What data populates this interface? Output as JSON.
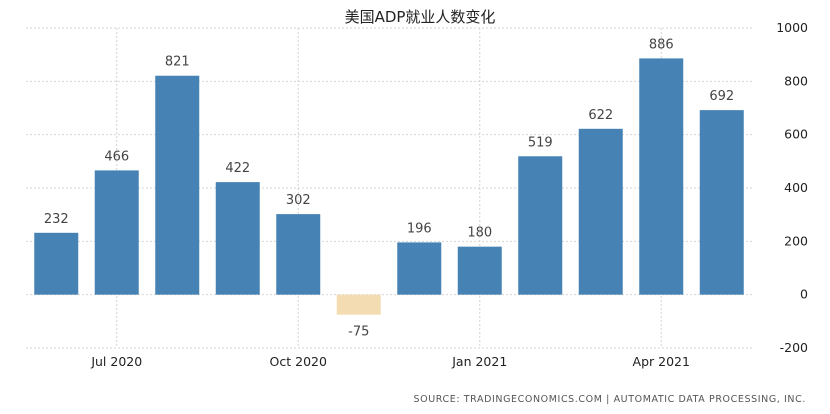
{
  "chart_data": {
    "type": "bar",
    "title": "美国ADP就业人数变化",
    "categories": [
      "2020-06",
      "2020-07",
      "2020-08",
      "2020-09",
      "2020-10",
      "2020-11",
      "2020-12",
      "2021-01",
      "2021-02",
      "2021-03",
      "2021-04",
      "2021-05"
    ],
    "values": [
      232,
      466,
      821,
      422,
      302,
      -75,
      196,
      180,
      519,
      622,
      886,
      692
    ],
    "value_labels": [
      "232",
      "466",
      "821",
      "422",
      "302",
      "-75",
      "196",
      "180",
      "519",
      "622",
      "886",
      "692"
    ],
    "x_tick_labels": [
      {
        "label": "Jul 2020",
        "at": "2020-07"
      },
      {
        "label": "Oct 2020",
        "at": "2020-10"
      },
      {
        "label": "Jan 2021",
        "at": "2021-01"
      },
      {
        "label": "Apr 2021",
        "at": "2021-04"
      }
    ],
    "y_ticks": [
      -200,
      0,
      200,
      400,
      600,
      800,
      1000
    ],
    "ylim": [
      -200,
      1000
    ],
    "y_axis_side": "right",
    "grid": true,
    "colors": {
      "positive": "#4682b4",
      "negative": "#f3dcb2"
    },
    "source": "SOURCE: TRADINGECONOMICS.COM  |  AUTOMATIC DATA PROCESSING, INC."
  }
}
